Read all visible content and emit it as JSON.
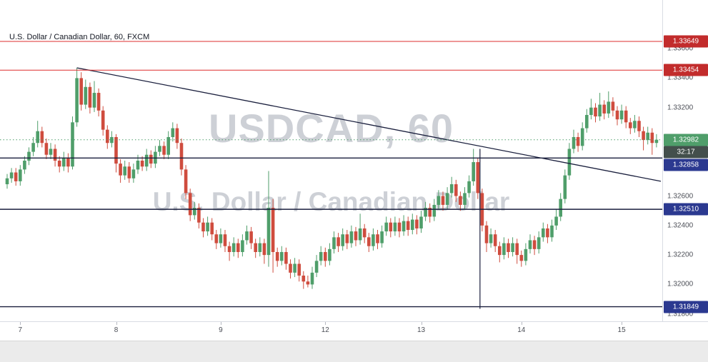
{
  "chart": {
    "title": "U.S. Dollar / Canadian Dollar, 60, FXCM",
    "watermark_line1": "USDCAD, 60",
    "watermark_line2": "U.S. Dollar / Canadian Dollar"
  },
  "colors": {
    "up": "#4f9e6a",
    "down": "#cf4c3e",
    "red_line": "#dd2c2c",
    "red_badge": "#c22c2c",
    "navy_line": "#1a1f3d",
    "navy_badge": "#2b3990",
    "last_badge": "#4f9e6a",
    "countdown_badge": "#434f4c",
    "trend_line": "#1a1f3d",
    "axis_text": "#4c4f57",
    "watermark": "rgba(123,131,146,0.38)"
  },
  "chart_data": {
    "type": "candlestick",
    "symbol": "USDCAD",
    "interval": "60",
    "feed": "FXCM",
    "ylim": [
      1.3175,
      1.3393
    ],
    "last_price": 1.32982,
    "countdown": "32:17",
    "x_labels": [
      {
        "label": "7",
        "index": 3
      },
      {
        "label": "8",
        "index": 25
      },
      {
        "label": "9",
        "index": 49
      },
      {
        "label": "12",
        "index": 73
      },
      {
        "label": "13",
        "index": 95
      },
      {
        "label": "14",
        "index": 118
      },
      {
        "label": "15",
        "index": 141
      }
    ],
    "y_labels": [
      {
        "label": "1.33600",
        "price": 1.336
      },
      {
        "label": "1.33400",
        "price": 1.334
      },
      {
        "label": "1.33200",
        "price": 1.332
      },
      {
        "label": "1.32600",
        "price": 1.326
      },
      {
        "label": "1.32400",
        "price": 1.324
      },
      {
        "label": "1.32200",
        "price": 1.322
      },
      {
        "label": "1.32000",
        "price": 1.32
      },
      {
        "label": "1.31800",
        "price": 1.318
      }
    ],
    "price_lines": [
      {
        "price": 1.33649,
        "color": "red",
        "style": "solid"
      },
      {
        "price": 1.33454,
        "color": "red",
        "style": "solid"
      },
      {
        "price": 1.32858,
        "color": "navy",
        "style": "solid"
      },
      {
        "price": 1.3251,
        "color": "navy",
        "style": "solid"
      },
      {
        "price": 1.31849,
        "color": "navy",
        "style": "solid"
      },
      {
        "price": 1.32982,
        "color": "last",
        "style": "dotted"
      }
    ],
    "badges": [
      {
        "text": "1.33649",
        "price": 1.33649,
        "type": "red"
      },
      {
        "text": "1.33454",
        "price": 1.33454,
        "type": "red"
      },
      {
        "text": "1.32982",
        "price": 1.32982,
        "type": "last"
      },
      {
        "text": "32:17",
        "price": 1.32982,
        "type": "countdown",
        "stack": true
      },
      {
        "text": "1.32858",
        "price": 1.32858,
        "type": "navy"
      },
      {
        "text": "1.32510",
        "price": 1.3251,
        "type": "navy"
      },
      {
        "text": "1.31849",
        "price": 1.31849,
        "type": "navy"
      }
    ],
    "trendline": {
      "from_index": 16,
      "from_price": 1.3347,
      "to_index": 150,
      "to_price": 1.327
    },
    "vertical_line": {
      "index": 108.5,
      "from_price": 1.3292,
      "to_price": 1.31835
    },
    "candles": [
      [
        1.3268,
        1.3275,
        1.3265,
        1.3272
      ],
      [
        1.3272,
        1.3279,
        1.3269,
        1.3276
      ],
      [
        1.3276,
        1.3279,
        1.3267,
        1.327
      ],
      [
        1.327,
        1.3281,
        1.3267,
        1.3278
      ],
      [
        1.3278,
        1.3287,
        1.3275,
        1.3284
      ],
      [
        1.3284,
        1.3293,
        1.3281,
        1.329
      ],
      [
        1.329,
        1.33,
        1.3287,
        1.3296
      ],
      [
        1.3296,
        1.3311,
        1.3293,
        1.3304
      ],
      [
        1.3304,
        1.3307,
        1.3293,
        1.3296
      ],
      [
        1.3296,
        1.3299,
        1.3285,
        1.3288
      ],
      [
        1.3288,
        1.3296,
        1.3285,
        1.3292
      ],
      [
        1.3292,
        1.3295,
        1.328,
        1.3284
      ],
      [
        1.3284,
        1.3287,
        1.3276,
        1.328
      ],
      [
        1.328,
        1.329,
        1.3277,
        1.3286
      ],
      [
        1.3286,
        1.3289,
        1.3276,
        1.328
      ],
      [
        1.328,
        1.3314,
        1.3278,
        1.331
      ],
      [
        1.331,
        1.3347,
        1.3307,
        1.334
      ],
      [
        1.334,
        1.3344,
        1.3318,
        1.3322
      ],
      [
        1.3322,
        1.3339,
        1.3319,
        1.3334
      ],
      [
        1.3334,
        1.3337,
        1.3316,
        1.332
      ],
      [
        1.332,
        1.3338,
        1.3317,
        1.333
      ],
      [
        1.333,
        1.3333,
        1.3314,
        1.3318
      ],
      [
        1.3318,
        1.3321,
        1.3301,
        1.3305
      ],
      [
        1.3305,
        1.3308,
        1.3292,
        1.3296
      ],
      [
        1.3296,
        1.3304,
        1.3293,
        1.33
      ],
      [
        1.33,
        1.3302,
        1.3276,
        1.3282
      ],
      [
        1.3282,
        1.3285,
        1.3269,
        1.3274
      ],
      [
        1.3274,
        1.3284,
        1.3271,
        1.328
      ],
      [
        1.328,
        1.3283,
        1.3269,
        1.3272
      ],
      [
        1.3272,
        1.3282,
        1.3269,
        1.3278
      ],
      [
        1.3278,
        1.3288,
        1.3275,
        1.3284
      ],
      [
        1.3284,
        1.3287,
        1.3277,
        1.328
      ],
      [
        1.328,
        1.3292,
        1.3277,
        1.3288
      ],
      [
        1.3288,
        1.3291,
        1.3279,
        1.3282
      ],
      [
        1.3282,
        1.3294,
        1.3279,
        1.329
      ],
      [
        1.329,
        1.3298,
        1.3287,
        1.3294
      ],
      [
        1.3294,
        1.3297,
        1.3285,
        1.3288
      ],
      [
        1.3288,
        1.3304,
        1.3285,
        1.33
      ],
      [
        1.33,
        1.331,
        1.3297,
        1.3306
      ],
      [
        1.3306,
        1.3309,
        1.3292,
        1.3296
      ],
      [
        1.3296,
        1.3299,
        1.3274,
        1.3278
      ],
      [
        1.3278,
        1.3281,
        1.3258,
        1.3262
      ],
      [
        1.3262,
        1.3265,
        1.3243,
        1.3247
      ],
      [
        1.3247,
        1.3256,
        1.3244,
        1.3252
      ],
      [
        1.3252,
        1.3255,
        1.3238,
        1.3242
      ],
      [
        1.3242,
        1.3245,
        1.3232,
        1.3236
      ],
      [
        1.3236,
        1.3246,
        1.3233,
        1.3242
      ],
      [
        1.3242,
        1.3245,
        1.323,
        1.3234
      ],
      [
        1.3234,
        1.3237,
        1.3224,
        1.3228
      ],
      [
        1.3228,
        1.3238,
        1.3225,
        1.3234
      ],
      [
        1.3234,
        1.3237,
        1.3222,
        1.3226
      ],
      [
        1.3226,
        1.3229,
        1.3216,
        1.3222
      ],
      [
        1.3222,
        1.3232,
        1.3219,
        1.3228
      ],
      [
        1.3228,
        1.3231,
        1.3218,
        1.3222
      ],
      [
        1.3222,
        1.3234,
        1.3219,
        1.323
      ],
      [
        1.323,
        1.324,
        1.3227,
        1.3236
      ],
      [
        1.3236,
        1.3239,
        1.3224,
        1.3228
      ],
      [
        1.3228,
        1.3231,
        1.3218,
        1.3222
      ],
      [
        1.3222,
        1.3232,
        1.3219,
        1.3228
      ],
      [
        1.3228,
        1.3231,
        1.3214,
        1.322
      ],
      [
        1.322,
        1.3277,
        1.3212,
        1.3252
      ],
      [
        1.3252,
        1.3258,
        1.3208,
        1.3222
      ],
      [
        1.3222,
        1.3225,
        1.3212,
        1.3216
      ],
      [
        1.3216,
        1.3226,
        1.3213,
        1.3222
      ],
      [
        1.3222,
        1.3225,
        1.321,
        1.3214
      ],
      [
        1.3214,
        1.3217,
        1.3204,
        1.3208
      ],
      [
        1.3208,
        1.3218,
        1.3205,
        1.3214
      ],
      [
        1.3214,
        1.3217,
        1.3202,
        1.3206
      ],
      [
        1.3206,
        1.3209,
        1.3197,
        1.3202
      ],
      [
        1.3202,
        1.3206,
        1.3198,
        1.32
      ],
      [
        1.32,
        1.3212,
        1.3197,
        1.3208
      ],
      [
        1.3208,
        1.322,
        1.3205,
        1.3216
      ],
      [
        1.3216,
        1.3226,
        1.3213,
        1.3222
      ],
      [
        1.3222,
        1.3225,
        1.3212,
        1.3216
      ],
      [
        1.3216,
        1.3228,
        1.3213,
        1.3224
      ],
      [
        1.3224,
        1.3236,
        1.3221,
        1.3232
      ],
      [
        1.3232,
        1.3235,
        1.3222,
        1.3226
      ],
      [
        1.3226,
        1.3238,
        1.3223,
        1.3234
      ],
      [
        1.3234,
        1.3237,
        1.3224,
        1.3228
      ],
      [
        1.3228,
        1.324,
        1.3225,
        1.3236
      ],
      [
        1.3236,
        1.3239,
        1.3226,
        1.323
      ],
      [
        1.323,
        1.3248,
        1.3227,
        1.3238
      ],
      [
        1.3238,
        1.3241,
        1.3228,
        1.3232
      ],
      [
        1.3232,
        1.3235,
        1.3222,
        1.3226
      ],
      [
        1.3226,
        1.3238,
        1.3223,
        1.3234
      ],
      [
        1.3234,
        1.3237,
        1.3224,
        1.3228
      ],
      [
        1.3228,
        1.324,
        1.3225,
        1.3236
      ],
      [
        1.3236,
        1.3246,
        1.3233,
        1.3242
      ],
      [
        1.3242,
        1.3245,
        1.3232,
        1.3236
      ],
      [
        1.3236,
        1.3246,
        1.3233,
        1.3242
      ],
      [
        1.3242,
        1.3245,
        1.3232,
        1.3236
      ],
      [
        1.3236,
        1.3247,
        1.3233,
        1.3243
      ],
      [
        1.3243,
        1.3246,
        1.3233,
        1.3237
      ],
      [
        1.3237,
        1.3248,
        1.3234,
        1.3244
      ],
      [
        1.3244,
        1.3247,
        1.3234,
        1.3238
      ],
      [
        1.3238,
        1.325,
        1.3235,
        1.3246
      ],
      [
        1.3246,
        1.3256,
        1.3243,
        1.3252
      ],
      [
        1.3252,
        1.3255,
        1.3242,
        1.3246
      ],
      [
        1.3246,
        1.3258,
        1.3243,
        1.3254
      ],
      [
        1.3254,
        1.3264,
        1.3251,
        1.326
      ],
      [
        1.326,
        1.3263,
        1.325,
        1.3254
      ],
      [
        1.3254,
        1.3266,
        1.3251,
        1.3262
      ],
      [
        1.3262,
        1.3273,
        1.3259,
        1.3268
      ],
      [
        1.3268,
        1.3271,
        1.3256,
        1.326
      ],
      [
        1.326,
        1.3263,
        1.325,
        1.3254
      ],
      [
        1.3254,
        1.3266,
        1.3251,
        1.3262
      ],
      [
        1.3262,
        1.3274,
        1.3259,
        1.327
      ],
      [
        1.327,
        1.3292,
        1.3267,
        1.3283
      ],
      [
        1.3283,
        1.3286,
        1.3258,
        1.3262
      ],
      [
        1.3262,
        1.3265,
        1.3236,
        1.324
      ],
      [
        1.324,
        1.3243,
        1.3222,
        1.3228
      ],
      [
        1.3228,
        1.3238,
        1.3225,
        1.3234
      ],
      [
        1.3234,
        1.3237,
        1.3222,
        1.3226
      ],
      [
        1.3226,
        1.3229,
        1.3215,
        1.322
      ],
      [
        1.322,
        1.3232,
        1.3217,
        1.3228
      ],
      [
        1.3228,
        1.3231,
        1.3218,
        1.3222
      ],
      [
        1.3222,
        1.3232,
        1.3219,
        1.3228
      ],
      [
        1.3228,
        1.3231,
        1.3214,
        1.322
      ],
      [
        1.322,
        1.3223,
        1.3212,
        1.3216
      ],
      [
        1.3216,
        1.3228,
        1.3213,
        1.3224
      ],
      [
        1.3224,
        1.3234,
        1.3221,
        1.323
      ],
      [
        1.323,
        1.3233,
        1.322,
        1.3224
      ],
      [
        1.3224,
        1.3236,
        1.3221,
        1.3232
      ],
      [
        1.3232,
        1.3242,
        1.3229,
        1.3238
      ],
      [
        1.3238,
        1.3241,
        1.3228,
        1.3232
      ],
      [
        1.3232,
        1.3244,
        1.3229,
        1.324
      ],
      [
        1.324,
        1.3251,
        1.3237,
        1.3246
      ],
      [
        1.3246,
        1.3262,
        1.3243,
        1.3258
      ],
      [
        1.3258,
        1.3278,
        1.3255,
        1.3274
      ],
      [
        1.3274,
        1.3296,
        1.3271,
        1.3292
      ],
      [
        1.3292,
        1.3305,
        1.3289,
        1.33
      ],
      [
        1.33,
        1.3303,
        1.329,
        1.3294
      ],
      [
        1.3294,
        1.331,
        1.3291,
        1.3306
      ],
      [
        1.3306,
        1.3319,
        1.3303,
        1.3315
      ],
      [
        1.3315,
        1.3326,
        1.3312,
        1.332
      ],
      [
        1.332,
        1.3323,
        1.331,
        1.3314
      ],
      [
        1.3314,
        1.333,
        1.3311,
        1.3322
      ],
      [
        1.3322,
        1.3325,
        1.3312,
        1.3316
      ],
      [
        1.3316,
        1.3331,
        1.3313,
        1.3324
      ],
      [
        1.3324,
        1.3327,
        1.3314,
        1.3318
      ],
      [
        1.3318,
        1.3321,
        1.3308,
        1.3312
      ],
      [
        1.3312,
        1.3322,
        1.3309,
        1.3318
      ],
      [
        1.3318,
        1.3321,
        1.3306,
        1.331
      ],
      [
        1.331,
        1.3313,
        1.3302,
        1.3306
      ],
      [
        1.3306,
        1.3315,
        1.3303,
        1.3311
      ],
      [
        1.3311,
        1.3314,
        1.33,
        1.3304
      ],
      [
        1.3304,
        1.3307,
        1.3291,
        1.3298
      ],
      [
        1.3298,
        1.3307,
        1.3295,
        1.3303
      ],
      [
        1.3303,
        1.3306,
        1.3288,
        1.3296
      ],
      [
        1.3296,
        1.3302,
        1.3293,
        1.32982
      ]
    ]
  }
}
